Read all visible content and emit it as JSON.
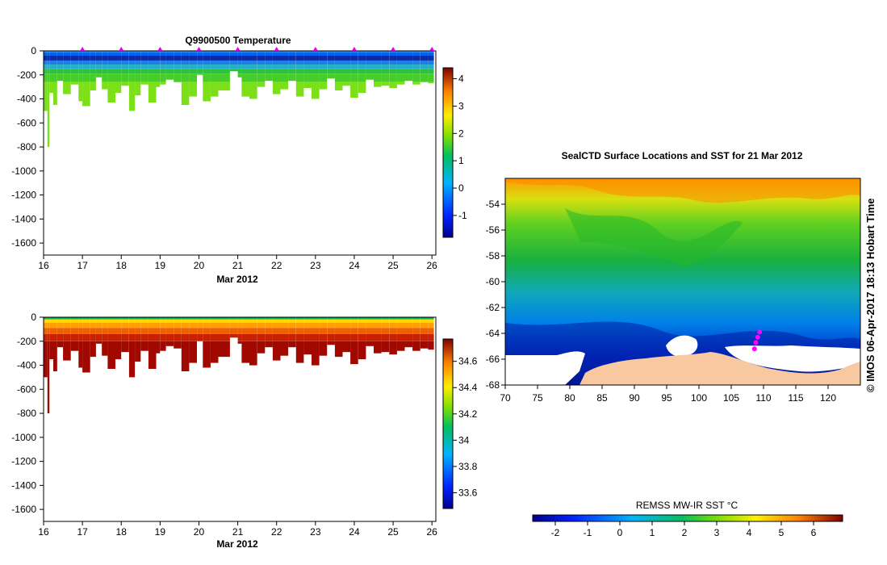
{
  "chart_data": [
    {
      "type": "heatmap",
      "title": "Q9900500  Temperature",
      "xlabel": "Mar 2012",
      "ylabel": "",
      "x_range": [
        16,
        26.1
      ],
      "x_ticks": [
        16,
        17,
        18,
        19,
        20,
        21,
        22,
        23,
        24,
        25,
        26
      ],
      "y_range": [
        0,
        -1700
      ],
      "y_ticks": [
        0,
        -200,
        -400,
        -600,
        -800,
        -1000,
        -1200,
        -1400,
        -1600
      ],
      "profile_markers_day": [
        17,
        18,
        19,
        20,
        21,
        22,
        23,
        24,
        25,
        26
      ],
      "colorbar": {
        "range": [
          -1.8,
          4.4
        ],
        "ticks": [
          -1,
          0,
          1,
          2,
          3,
          4
        ]
      },
      "profiles": {
        "day": [
          16.0,
          16.1,
          16.15,
          16.25,
          16.35,
          16.5,
          16.7,
          16.9,
          17.0,
          17.2,
          17.35,
          17.5,
          17.65,
          17.85,
          18.0,
          18.2,
          18.35,
          18.5,
          18.7,
          18.9,
          19.0,
          19.15,
          19.35,
          19.55,
          19.75,
          19.95,
          20.1,
          20.3,
          20.5,
          20.8,
          21.0,
          21.1,
          21.3,
          21.5,
          21.7,
          21.9,
          22.1,
          22.3,
          22.5,
          22.7,
          22.9,
          23.1,
          23.3,
          23.5,
          23.7,
          23.9,
          24.1,
          24.3,
          24.5,
          24.7,
          24.9,
          25.1,
          25.3,
          25.5,
          25.7,
          25.9
        ],
        "max_depth": [
          500,
          800,
          350,
          450,
          250,
          360,
          280,
          420,
          460,
          330,
          220,
          320,
          430,
          350,
          290,
          500,
          370,
          280,
          430,
          300,
          280,
          240,
          260,
          450,
          380,
          200,
          420,
          380,
          330,
          170,
          220,
          380,
          400,
          300,
          250,
          360,
          320,
          250,
          380,
          310,
          400,
          320,
          230,
          330,
          290,
          390,
          350,
          240,
          300,
          290,
          310,
          280,
          250,
          280,
          260,
          270
        ]
      }
    },
    {
      "type": "heatmap",
      "title": "",
      "xlabel": "Mar 2012",
      "ylabel": "",
      "x_range": [
        16,
        26.1
      ],
      "x_ticks": [
        16,
        17,
        18,
        19,
        20,
        21,
        22,
        23,
        24,
        25,
        26
      ],
      "y_range": [
        0,
        -1700
      ],
      "y_ticks": [
        0,
        -200,
        -400,
        -600,
        -800,
        -1000,
        -1200,
        -1400,
        -1600
      ],
      "colorbar": {
        "range": [
          33.48,
          34.77
        ],
        "ticks": [
          33.6,
          33.8,
          34,
          34.2,
          34.4,
          34.6
        ]
      }
    },
    {
      "type": "heatmap",
      "title": "SealCTD Surface Locations and SST for 21 Mar 2012",
      "xlabel": "",
      "ylabel": "",
      "lon_range": [
        70,
        125
      ],
      "lon_ticks": [
        70,
        75,
        80,
        85,
        90,
        95,
        100,
        105,
        110,
        115,
        120
      ],
      "lat_range": [
        -68,
        -52
      ],
      "lat_ticks": [
        -54,
        -56,
        -58,
        -60,
        -62,
        -64,
        -66,
        -68
      ],
      "surface_track": [
        [
          108.6,
          -65.2
        ],
        [
          108.8,
          -64.7
        ],
        [
          109.1,
          -64.3
        ],
        [
          109.4,
          -63.9
        ]
      ],
      "colorbar": {
        "label": "REMSS MW-IR SST °C",
        "range": [
          -2.7,
          6.9
        ],
        "ticks": [
          -2,
          -1,
          0,
          1,
          2,
          3,
          4,
          5,
          6
        ]
      },
      "credit": "© IMOS 06-Apr-2017 18:13 Hobart Time"
    }
  ]
}
